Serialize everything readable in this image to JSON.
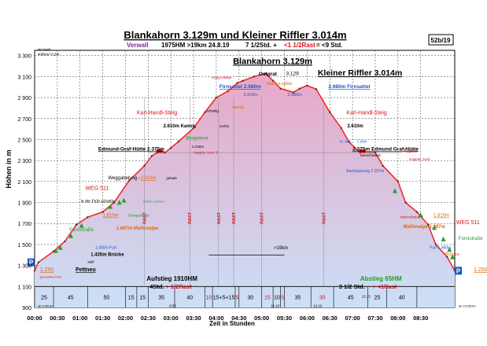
{
  "header": {
    "title": "Blankahorn 3.129m und Kleiner Riffler 3.014m",
    "region": "Verwall",
    "stats": "1975HM  >19km  24.8.19",
    "time": "7 1/2Std. + ",
    "rest": "<1 1/2Rast",
    "result": " = <9 Std.",
    "tag": "52b/19"
  },
  "colors": {
    "profile_stroke": "#ef2b2b",
    "fill_top": "#e8a7c7",
    "fill_bottom": "#cbe0f7",
    "title_purple": "#7a2c91",
    "red": "#d8121b",
    "orange": "#e36a00",
    "blue": "#1f55c9",
    "green": "#239a23",
    "grid": "#3a3a3a",
    "grey_line": "#9a9a9a"
  },
  "chart_data": {
    "type": "area",
    "title": "Blankahorn 3.129m und Kleiner Riffler 3.014m",
    "xlabel": "Zeit in Stunden",
    "ylabel": "Höhen in m",
    "xlim": [
      0,
      555
    ],
    "ylim": [
      900,
      3350
    ],
    "grid": true,
    "x_ticks": [
      "00:00",
      "00:30",
      "01:00",
      "01:30",
      "02:00",
      "02:30",
      "03:00",
      "03:30",
      "04:00",
      "04:30",
      "05:00",
      "05:30",
      "06:00",
      "06:30",
      "07:00",
      "07:30",
      "08:00",
      "08:30"
    ],
    "y_ticks": [
      900,
      1100,
      1300,
      1500,
      1700,
      1900,
      2100,
      2300,
      2500,
      2700,
      2900,
      3100,
      3300
    ],
    "series": [
      {
        "x": [
          0,
          5,
          25,
          40,
          55,
          70,
          90,
          105,
          125,
          145,
          155,
          162,
          172,
          180,
          190,
          210,
          225,
          240,
          255,
          268,
          275,
          290,
          305,
          315,
          325,
          342,
          350,
          360,
          372,
          390,
          405,
          415,
          430,
          450,
          460,
          480,
          490,
          505,
          520,
          530,
          545,
          555
        ],
        "y": [
          1250,
          1330,
          1435,
          1530,
          1687,
          1760,
          1810,
          1900,
          2110,
          2250,
          2345,
          2375,
          2375,
          2420,
          2480,
          2610,
          2760,
          2900,
          2960,
          3040,
          3060,
          3100,
          3129,
          3060,
          2985,
          2950,
          2985,
          3014,
          2980,
          2760,
          2610,
          2480,
          2375,
          2375,
          2250,
          2100,
          1900,
          1810,
          1687,
          1500,
          1380,
          1250
        ]
      }
    ],
    "bottom_segments": [
      {
        "x0": 0,
        "x1": 25,
        "label": "25",
        "color": "#000000"
      },
      {
        "x0": 25,
        "x1": 70,
        "label": "45",
        "color": "#000000"
      },
      {
        "x0": 70,
        "x1": 120,
        "label": "50",
        "color": "#000000"
      },
      {
        "x0": 120,
        "x1": 135,
        "label": "15",
        "color": "#000000"
      },
      {
        "x0": 135,
        "x1": 150,
        "label": "15",
        "color": "#000000"
      },
      {
        "x0": 150,
        "x1": 185,
        "label": "35",
        "color": "#000000"
      },
      {
        "x0": 185,
        "x1": 225,
        "label": "40",
        "color": "#000000"
      },
      {
        "x0": 225,
        "x1": 235,
        "label": "10",
        "color": "#d8121b"
      },
      {
        "x0": 235,
        "x1": 265,
        "label": "15+5+15",
        "color": "#000000"
      },
      {
        "x0": 265,
        "x1": 270,
        "label": "5",
        "color": "#d8121b"
      },
      {
        "x0": 270,
        "x1": 300,
        "label": "30",
        "color": "#000000"
      },
      {
        "x0": 300,
        "x1": 315,
        "label": "15",
        "color": "#d8121b"
      },
      {
        "x0": 315,
        "x1": 325,
        "label": "10",
        "color": "#000000"
      },
      {
        "x0": 325,
        "x1": 330,
        "label": "5",
        "color": "#d8121b"
      },
      {
        "x0": 330,
        "x1": 365,
        "label": "35",
        "color": "#000000"
      },
      {
        "x0": 365,
        "x1": 395,
        "label": "30",
        "color": "#d8121b"
      },
      {
        "x0": 395,
        "x1": 440,
        "label": "45",
        "color": "#000000"
      },
      {
        "x0": 440,
        "x1": 465,
        "label": "25",
        "color": "#000000"
      },
      {
        "x0": 465,
        "x1": 505,
        "label": "40",
        "color": "#000000"
      },
      {
        "x0": 505,
        "x1": 555,
        "label": "",
        "color": "#000000"
      }
    ],
    "rast_marks": [
      145,
      205,
      243,
      263,
      300,
      382
    ],
    "rast_label": "RAST",
    "annotations": {
      "summit_big": {
        "text": "Blankahorn 3.129m",
        "x": 262,
        "y": 3220
      },
      "riffler_big": {
        "text": "Kleiner Riffler 3.014m",
        "x": 374,
        "y": 3110
      },
      "ostgrat": {
        "text": "Ostgrat",
        "x": 296,
        "y": 3110
      },
      "val3129": {
        "text": "3.129",
        "x": 332,
        "y": 3115
      },
      "firnsattel_l": {
        "text": "Firnsattel 2.980m",
        "x": 244,
        "y": 2990
      },
      "firnsattel_r": {
        "text": "2.980m Firnsattel",
        "x": 388,
        "y": 2990
      },
      "val2915": {
        "text": "2.915m",
        "x": 276,
        "y": 2915
      },
      "val2980m": {
        "text": "2.980m",
        "x": 334,
        "y": 2915
      },
      "hoher_riffler": {
        "text": "Hoher-Riffler",
        "x": 234,
        "y": 3075
      },
      "blankasattel": {
        "text": "Blanka-sattel",
        "x": 307,
        "y": 3020
      },
      "karl_l": {
        "text": "Karl-Handl-Steig",
        "x": 135,
        "y": 2740
      },
      "karl_r": {
        "text": "Karl-Handl-Steig",
        "x": 412,
        "y": 2740
      },
      "kamm": {
        "text": "2.610m Kamm,",
        "x": 170,
        "y": 2615
      },
      "rechts": {
        "text": "rechts",
        "x": 244,
        "y": 2615
      },
      "schattig": {
        "text": "schattig",
        "x": 227,
        "y": 2760
      },
      "sonnig": {
        "text": "sonnig",
        "x": 261,
        "y": 2795
      },
      "val2610r": {
        "text": "2.610m",
        "x": 413,
        "y": 2615
      },
      "bergwiese": {
        "text": "Bergwiese",
        "x": 200,
        "y": 2500
      },
      "edmund_l": {
        "text": "Edmund-Graf-Hütte 2.375m",
        "x": 84,
        "y": 2395
      },
      "edmund_r": {
        "text": "2.375m Edmund Graf-Hütte",
        "x": 420,
        "y": 2395
      },
      "val2446": {
        "text": "2.446m",
        "x": 208,
        "y": 2420
      },
      "kappler_l": {
        "text": "Kappler Joch !!!",
        "x": 210,
        "y": 2365
      },
      "kappler_r": {
        "text": "Kappler Joch",
        "x": 495,
        "y": 2300
      },
      "kapelle": {
        "text": "Kapelle",
        "x": 488,
        "y": 2375
      },
      "kl_see": {
        "text": "Kl. See",
        "x": 403,
        "y": 2470
      },
      "dam": {
        "text": "2.50m",
        "x": 426,
        "y": 2470
      },
      "seeschwand": {
        "text": "Seeschwand",
        "x": 430,
        "y": 2340
      },
      "bachquerung": {
        "text": "Bachquerung 2.257m",
        "x": 412,
        "y": 2190
      },
      "weggabelung": {
        "text": "Weggabelung -",
        "x": 97,
        "y": 2120
      },
      "val2110": {
        "text": "2.110m",
        "x": 140,
        "y": 2120
      },
      "gelade": {
        "text": "gelade",
        "x": 174,
        "y": 2120
      },
      "weg511_l": {
        "text": "WEG 511",
        "x": 67,
        "y": 2020
      },
      "weg511_r": {
        "text": "WEG 511",
        "x": 557,
        "y": 1695
      },
      "frueh": {
        "text": "in der Früh schattig",
        "x": 61,
        "y": 1900
      },
      "leichte": {
        "text": "leichte Lärchen",
        "x": 143,
        "y": 1900
      },
      "val1810l": {
        "text": "1.810m",
        "x": 90,
        "y": 1765
      },
      "erlen": {
        "text": "Erlengebüsch",
        "x": 123,
        "y": 1765
      },
      "val1810r": {
        "text": "1.810m",
        "x": 527,
        "y": 1765
      },
      "malenbarn": {
        "text": "Malendsebarn",
        "x": 483,
        "y": 1750
      },
      "forst_l": {
        "text": "Forststraße",
        "x": 46,
        "y": 1625
      },
      "forst_r": {
        "text": "Forststraße",
        "x": 560,
        "y": 1545
      },
      "malfon_l": {
        "text": "1.687m Malfonalpe",
        "x": 108,
        "y": 1640
      },
      "malfon_r": {
        "text": "Malfonalpe 1.687m",
        "x": 487,
        "y": 1655
      },
      "furt_l": {
        "text": "1.480m Furt",
        "x": 80,
        "y": 1460
      },
      "furt_r": {
        "text": "Furt 1.480m",
        "x": 522,
        "y": 1460
      },
      "brucke_l": {
        "text": "1.435m Brücke",
        "x": 74,
        "y": 1390
      },
      "brucke_r": {
        "text": "Brücke",
        "x": 542,
        "y": 1390
      },
      "steil": {
        "text": "steil",
        "x": 70,
        "y": 1325
      },
      "val1250l": {
        "text": "1.250",
        "x": 7,
        "y": 1245
      },
      "pettneu": {
        "text": "Pettneu",
        "x": 54,
        "y": 1245
      },
      "parkplatz": {
        "text": "geräumter Park",
        "x": 7,
        "y": 1180
      },
      "val1250r": {
        "text": "1.250m",
        "x": 580,
        "y": 1245
      },
      "mid19": {
        "text": ">19km",
        "x": 316,
        "y": 1455
      },
      "aufstieg": {
        "text": "Aufstieg 1910HM",
        "x": 148,
        "y": 1155
      },
      "aufstieg_t": {
        "text": "4Std.",
        "x": 152,
        "y": 1080
      },
      "aufstieg_r": {
        "text": "+ 1/2Rast",
        "x": 173,
        "y": 1080
      },
      "abstieg": {
        "text": "Abstieg 65HM",
        "x": 430,
        "y": 1155
      },
      "abstieg_t": {
        "text": "3 1/2 Std.",
        "x": 402,
        "y": 1080
      },
      "abstieg_r": {
        "text": "+ <1Rast",
        "x": 446,
        "y": 1080
      },
      "ab": {
        "text": "ab 6:40Uhr",
        "x": 4,
        "y": 905
      },
      "an": {
        "text": "an 15:35Uhr",
        "x": 560,
        "y": 905
      },
      "t855": {
        "text": "8:55",
        "x": 178,
        "y": 905
      },
      "t1115": {
        "text": "11:15",
        "x": 312,
        "y": 905
      },
      "t1210": {
        "text": "12:10",
        "x": 368,
        "y": 905
      },
      "t1315": {
        "text": "13:15",
        "x": 432,
        "y": 995
      },
      "topleft1": {
        "text": "ab Heidi",
        "x": 4,
        "y": 3345
      },
      "topleft2": {
        "text": "400km/+3.3/4",
        "x": 4,
        "y": 3300
      }
    }
  }
}
